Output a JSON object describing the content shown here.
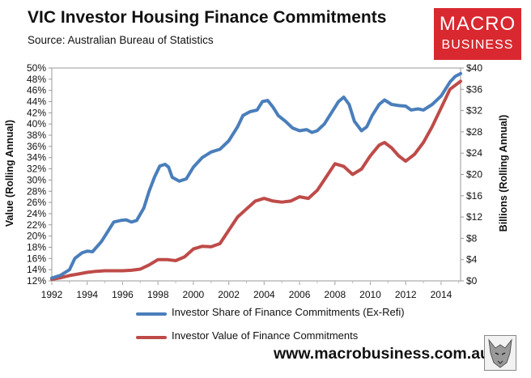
{
  "title": "VIC Investor Housing Finance Commitments",
  "subtitle": "Source: Australian Bureau of Statistics",
  "logo": {
    "line1": "MACRO",
    "line2": "BUSINESS"
  },
  "url": "www.macrobusiness.com.au",
  "colors": {
    "share": "#4a7ebb",
    "value": "#be4b48",
    "logo": "#d9282f"
  },
  "chart_data": {
    "type": "line",
    "title": "VIC Investor Housing Finance Commitments",
    "x_ticks": [
      "1992",
      "1994",
      "1996",
      "1998",
      "2000",
      "2002",
      "2004",
      "2006",
      "2008",
      "2010",
      "2012",
      "2014"
    ],
    "xlim": [
      1992,
      2015.1
    ],
    "y_left": {
      "label": "Value (Rolling Annual)",
      "ticks": [
        "12%",
        "14%",
        "16%",
        "18%",
        "20%",
        "22%",
        "24%",
        "26%",
        "28%",
        "30%",
        "32%",
        "34%",
        "36%",
        "38%",
        "40%",
        "42%",
        "44%",
        "46%",
        "48%",
        "50%"
      ],
      "lim": [
        12,
        50
      ],
      "unit": "%"
    },
    "y_right": {
      "label": "Billions (Rolling Annual)",
      "ticks": [
        "$0",
        "$4",
        "$8",
        "$12",
        "$16",
        "$20",
        "$24",
        "$28",
        "$32",
        "$36",
        "$40"
      ],
      "lim": [
        0,
        40
      ],
      "unit": "$bn"
    },
    "grid": false,
    "legend": "bottom",
    "series": [
      {
        "name": "Investor Share of Finance Commitments (Ex-Refi)",
        "axis": "left",
        "color": "#4a7ebb",
        "points": [
          [
            1992,
            12.5
          ],
          [
            1992.5,
            13.0
          ],
          [
            1993,
            14.0
          ],
          [
            1993.3,
            16.0
          ],
          [
            1993.7,
            17.0
          ],
          [
            1994,
            17.3
          ],
          [
            1994.3,
            17.2
          ],
          [
            1994.8,
            19.0
          ],
          [
            1995.2,
            21.0
          ],
          [
            1995.5,
            22.5
          ],
          [
            1995.9,
            22.8
          ],
          [
            1996.2,
            22.9
          ],
          [
            1996.5,
            22.5
          ],
          [
            1996.8,
            22.8
          ],
          [
            1997.2,
            25.0
          ],
          [
            1997.5,
            28.0
          ],
          [
            1997.8,
            30.5
          ],
          [
            1998.1,
            32.5
          ],
          [
            1998.4,
            32.8
          ],
          [
            1998.6,
            32.3
          ],
          [
            1998.8,
            30.5
          ],
          [
            1999.2,
            29.8
          ],
          [
            1999.6,
            30.2
          ],
          [
            2000,
            32.3
          ],
          [
            2000.5,
            34.0
          ],
          [
            2001,
            35.0
          ],
          [
            2001.5,
            35.5
          ],
          [
            2002,
            37.0
          ],
          [
            2002.5,
            39.5
          ],
          [
            2002.8,
            41.5
          ],
          [
            2003.2,
            42.2
          ],
          [
            2003.6,
            42.5
          ],
          [
            2003.9,
            44.0
          ],
          [
            2004.2,
            44.2
          ],
          [
            2004.5,
            43.0
          ],
          [
            2004.8,
            41.5
          ],
          [
            2005.2,
            40.5
          ],
          [
            2005.6,
            39.3
          ],
          [
            2006,
            38.8
          ],
          [
            2006.4,
            39.0
          ],
          [
            2006.7,
            38.5
          ],
          [
            2007,
            38.8
          ],
          [
            2007.4,
            40.0
          ],
          [
            2007.8,
            42.0
          ],
          [
            2008.2,
            44.0
          ],
          [
            2008.5,
            44.8
          ],
          [
            2008.8,
            43.5
          ],
          [
            2009.1,
            40.5
          ],
          [
            2009.5,
            38.8
          ],
          [
            2009.8,
            39.5
          ],
          [
            2010.1,
            41.5
          ],
          [
            2010.5,
            43.5
          ],
          [
            2010.8,
            44.3
          ],
          [
            2011.2,
            43.5
          ],
          [
            2011.6,
            43.3
          ],
          [
            2012,
            43.2
          ],
          [
            2012.3,
            42.5
          ],
          [
            2012.7,
            42.7
          ],
          [
            2013,
            42.5
          ],
          [
            2013.5,
            43.5
          ],
          [
            2014,
            45.0
          ],
          [
            2014.5,
            47.5
          ],
          [
            2014.8,
            48.5
          ],
          [
            2015.1,
            49.0
          ]
        ]
      },
      {
        "name": "Investor Value of Finance Commitments",
        "axis": "right",
        "color": "#be4b48",
        "points": [
          [
            1992,
            0.3
          ],
          [
            1992.5,
            0.6
          ],
          [
            1993,
            1.0
          ],
          [
            1993.5,
            1.3
          ],
          [
            1994,
            1.6
          ],
          [
            1994.5,
            1.8
          ],
          [
            1995,
            1.9
          ],
          [
            1995.5,
            1.9
          ],
          [
            1996,
            1.9
          ],
          [
            1996.5,
            2.0
          ],
          [
            1997,
            2.2
          ],
          [
            1997.5,
            3.0
          ],
          [
            1998,
            4.0
          ],
          [
            1998.5,
            4.0
          ],
          [
            1999,
            3.8
          ],
          [
            1999.5,
            4.5
          ],
          [
            2000,
            6.0
          ],
          [
            2000.5,
            6.5
          ],
          [
            2001,
            6.4
          ],
          [
            2001.5,
            7.0
          ],
          [
            2002,
            9.5
          ],
          [
            2002.5,
            12.0
          ],
          [
            2003,
            13.5
          ],
          [
            2003.5,
            15.0
          ],
          [
            2004,
            15.5
          ],
          [
            2004.5,
            15.0
          ],
          [
            2005,
            14.8
          ],
          [
            2005.5,
            15.0
          ],
          [
            2006,
            15.8
          ],
          [
            2006.5,
            15.5
          ],
          [
            2007,
            17.0
          ],
          [
            2007.5,
            19.5
          ],
          [
            2008,
            22.0
          ],
          [
            2008.5,
            21.5
          ],
          [
            2009,
            20.0
          ],
          [
            2009.5,
            21.0
          ],
          [
            2010,
            23.5
          ],
          [
            2010.5,
            25.5
          ],
          [
            2010.8,
            26.0
          ],
          [
            2011.2,
            25.0
          ],
          [
            2011.6,
            23.5
          ],
          [
            2012,
            22.5
          ],
          [
            2012.5,
            23.8
          ],
          [
            2013,
            26.0
          ],
          [
            2013.5,
            29.0
          ],
          [
            2014,
            32.5
          ],
          [
            2014.5,
            36.0
          ],
          [
            2015.1,
            37.5
          ]
        ]
      }
    ]
  }
}
